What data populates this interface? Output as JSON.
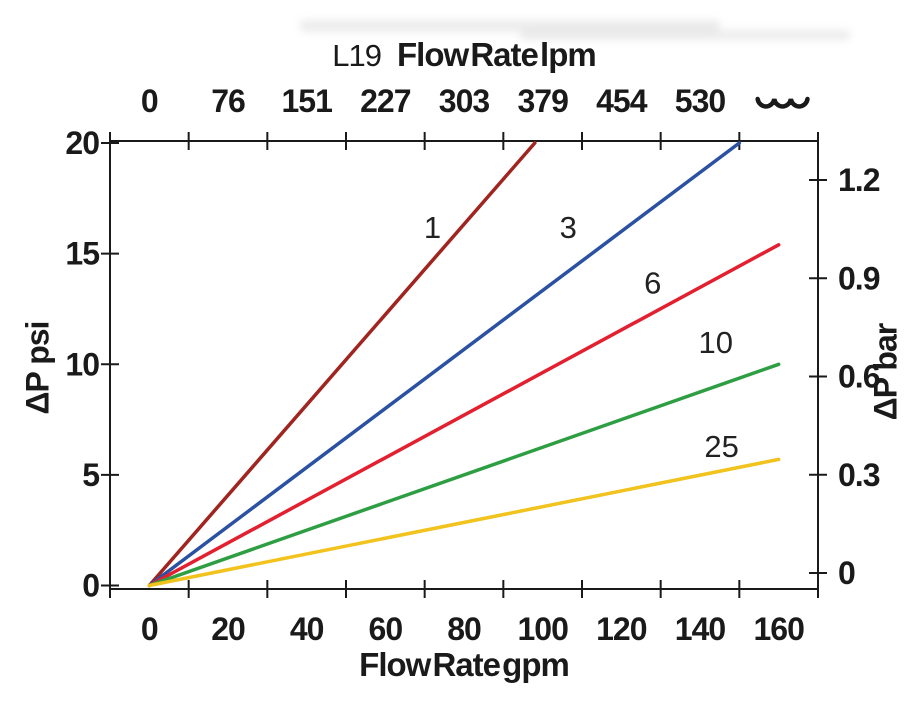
{
  "chart_data": {
    "type": "line",
    "title_model": "L19",
    "top_axis": {
      "title": "Flow Rate lpm",
      "tick_labels": [
        "0",
        "76",
        "151",
        "227",
        "303",
        "379",
        "454",
        "530",
        "∿∿∿"
      ],
      "note_last_label": "wavy squiggle glyph"
    },
    "bottom_axis": {
      "title": "Flow Rate gpm",
      "tick_labels": [
        "0",
        "20",
        "40",
        "60",
        "80",
        "100",
        "120",
        "140",
        "160"
      ],
      "range_gpm": [
        0,
        160
      ]
    },
    "left_axis": {
      "title": "ΔP psi",
      "tick_labels": [
        "0",
        "5",
        "10",
        "15",
        "20"
      ],
      "tick_values_psi": [
        0,
        5,
        10,
        15,
        20
      ],
      "range_psi": [
        0,
        20
      ]
    },
    "right_axis": {
      "title": "ΔP bar",
      "tick_labels": [
        "0",
        "0.3",
        "0.6",
        "0.9",
        "1.2"
      ],
      "tick_values_bar": [
        0,
        0.3,
        0.6,
        0.9,
        1.2
      ]
    },
    "grid": false,
    "legend": "inline labels above each line",
    "series": [
      {
        "label": "1",
        "color": "#A0241F",
        "points_gpm_psi": [
          [
            0,
            0
          ],
          [
            98,
            20
          ]
        ],
        "label_at_gpm_psi": [
          72,
          16.2
        ]
      },
      {
        "label": "3",
        "color": "#2B51A3",
        "points_gpm_psi": [
          [
            0,
            0
          ],
          [
            150,
            20
          ]
        ],
        "label_at_gpm_psi": [
          106.5,
          16.2
        ]
      },
      {
        "label": "6",
        "color": "#E32030",
        "points_gpm_psi": [
          [
            0,
            0
          ],
          [
            160,
            15.4
          ]
        ],
        "label_at_gpm_psi": [
          128,
          13.7
        ]
      },
      {
        "label": "10",
        "color": "#2E9E43",
        "points_gpm_psi": [
          [
            0,
            0
          ],
          [
            160,
            10.0
          ]
        ],
        "label_at_gpm_psi": [
          144,
          11.0
        ]
      },
      {
        "label": "25",
        "color": "#F2C21D",
        "points_gpm_psi": [
          [
            0,
            0
          ],
          [
            160,
            5.7
          ]
        ],
        "label_at_gpm_psi": [
          145.5,
          6.3
        ]
      }
    ],
    "axis_color": "#1a1a1a"
  }
}
